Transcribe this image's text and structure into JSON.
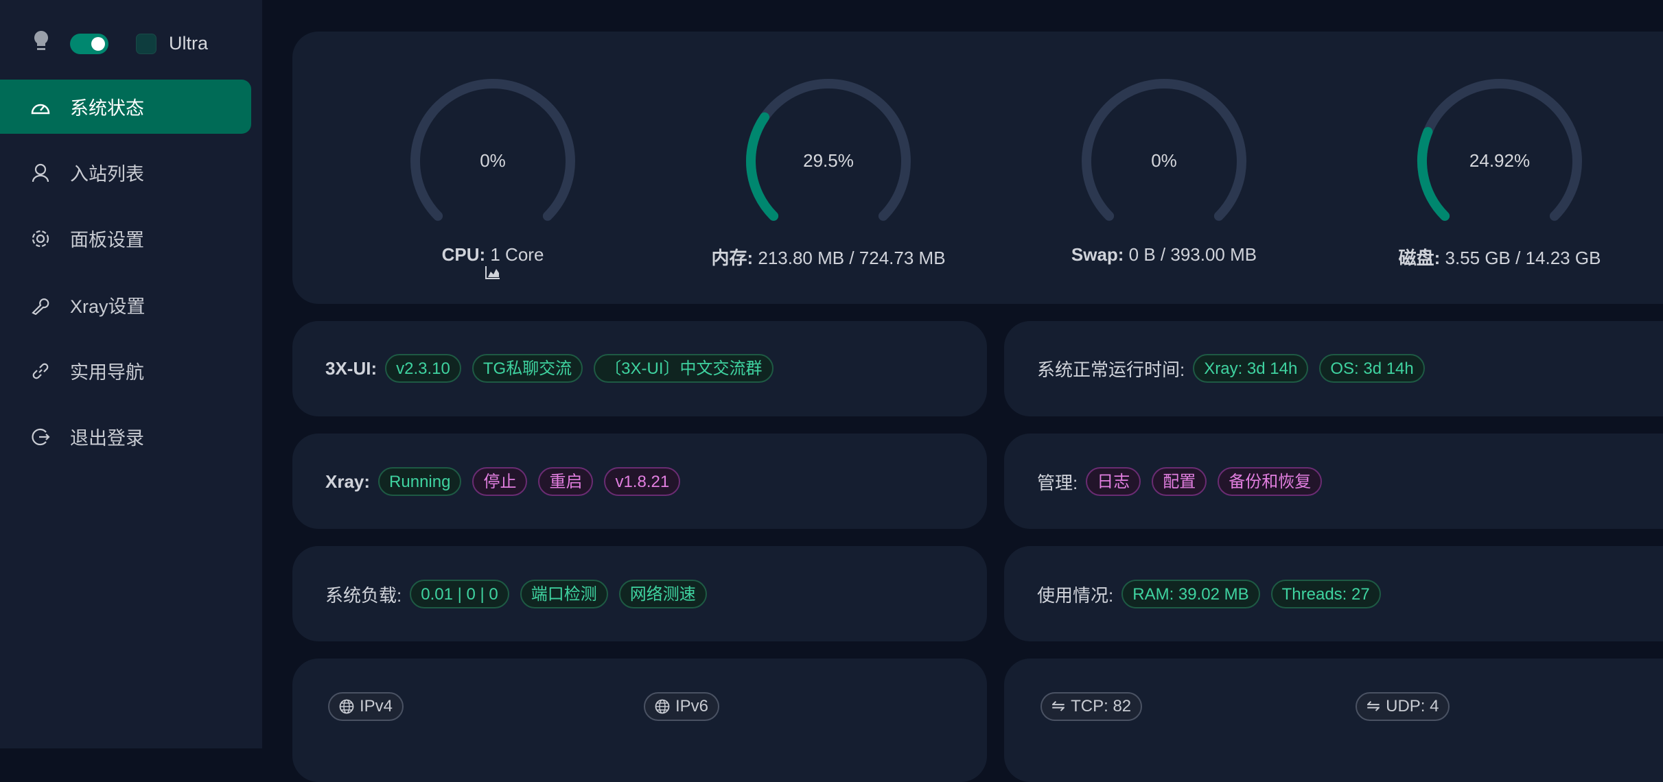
{
  "sidebar": {
    "theme_toggle_on": true,
    "ultra_label": "Ultra",
    "items": [
      {
        "label": "系统状态",
        "icon": "dashboard-icon",
        "active": true
      },
      {
        "label": "入站列表",
        "icon": "user-icon"
      },
      {
        "label": "面板设置",
        "icon": "gear-icon"
      },
      {
        "label": "Xray设置",
        "icon": "wrench-icon"
      },
      {
        "label": "实用导航",
        "icon": "link-icon"
      },
      {
        "label": "退出登录",
        "icon": "logout-icon"
      }
    ]
  },
  "gauges": [
    {
      "percent": 0,
      "value_text": "0%",
      "label_bold": "CPU:",
      "label_text": " 1 Core"
    },
    {
      "percent": 29.5,
      "value_text": "29.5%",
      "label_bold": "内存:",
      "label_text": " 213.80 MB / 724.73 MB"
    },
    {
      "percent": 0,
      "value_text": "0%",
      "label_bold": "Swap:",
      "label_text": " 0 B / 393.00 MB"
    },
    {
      "percent": 24.92,
      "value_text": "24.92%",
      "label_bold": "磁盘:",
      "label_text": " 3.55 GB / 14.23 GB"
    }
  ],
  "info": {
    "xui": {
      "title": "3X-UI:",
      "badges": [
        "v2.3.10",
        "TG私聊交流",
        "〔3X-UI〕中文交流群"
      ]
    },
    "uptime": {
      "title": "系统正常运行时间:",
      "badges": [
        "Xray: 3d 14h",
        "OS: 3d 14h"
      ]
    },
    "xray": {
      "title": "Xray:",
      "status": "Running",
      "badges": [
        "停止",
        "重启",
        "v1.8.21"
      ]
    },
    "manage": {
      "title": "管理:",
      "badges": [
        "日志",
        "配置",
        "备份和恢复"
      ]
    },
    "load": {
      "title": "系统负载:",
      "badges": [
        "0.01 | 0 | 0",
        "端口检测",
        "网络测速"
      ]
    },
    "usage": {
      "title": "使用情况:",
      "badges": [
        "RAM: 39.02 MB",
        "Threads: 27"
      ]
    },
    "net": {
      "ipv4": "IPv4",
      "ipv6": "IPv6",
      "tcp": "TCP: 82",
      "udp": "UDP: 4"
    }
  },
  "colors": {
    "accent": "#00876f",
    "track": "#2c3850",
    "green_text": "#3fd3a0",
    "purple_text": "#e27fe0"
  }
}
